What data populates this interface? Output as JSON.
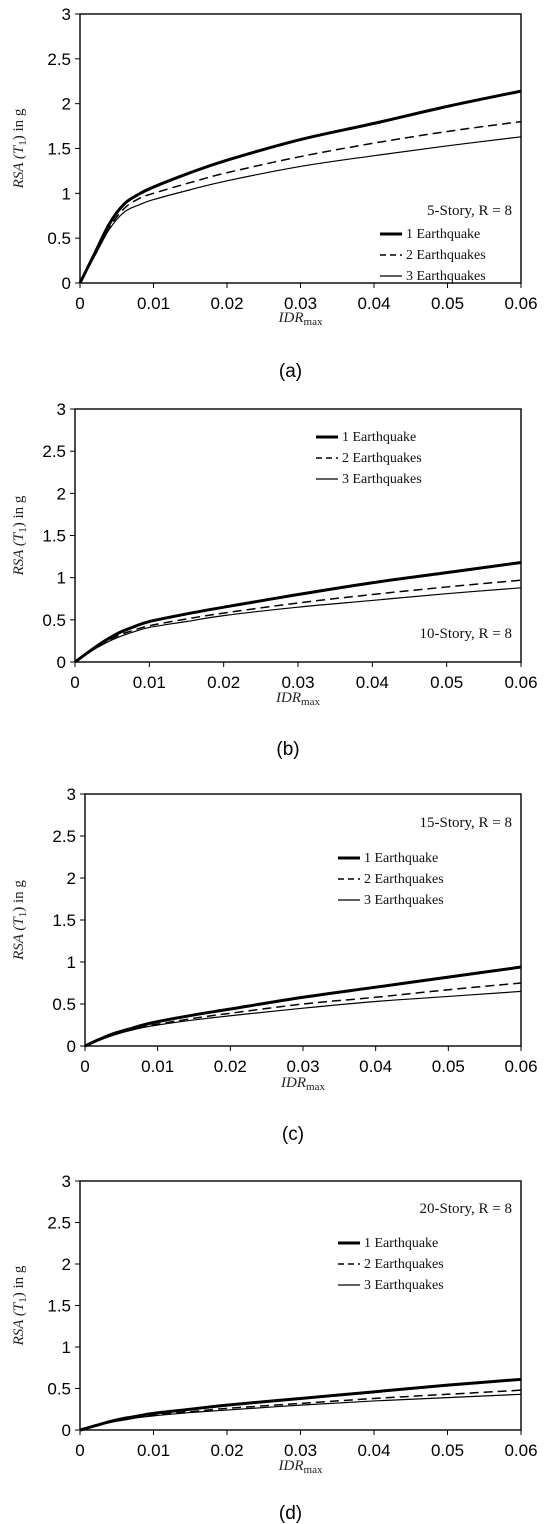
{
  "chart_data": [
    {
      "type": "line",
      "panel_label": "(a)",
      "title": "5-Story,  R = 8",
      "xlabel": "IDR",
      "xlabel_sub": "max",
      "ylabel": "RSA (T",
      "ylabel_sub": "1",
      "ylabel_tail": ") in g",
      "xlim": [
        0,
        0.06
      ],
      "ylim": [
        0,
        3
      ],
      "xticks": [
        "0",
        "0.01",
        "0.02",
        "0.03",
        "0.04",
        "0.05",
        "0.06"
      ],
      "yticks": [
        "0",
        "0.5",
        "1",
        "1.5",
        "2",
        "2.5",
        "3"
      ],
      "legend_position": "right",
      "series": [
        {
          "name": "1 Earthquake",
          "x": [
            0,
            0.002,
            0.004,
            0.006,
            0.008,
            0.01,
            0.015,
            0.02,
            0.03,
            0.04,
            0.05,
            0.06
          ],
          "y": [
            0,
            0.33,
            0.66,
            0.88,
            0.99,
            1.07,
            1.23,
            1.37,
            1.6,
            1.78,
            1.97,
            2.14
          ]
        },
        {
          "name": "2 Earthquakes",
          "x": [
            0,
            0.002,
            0.004,
            0.006,
            0.008,
            0.01,
            0.015,
            0.02,
            0.03,
            0.04,
            0.05,
            0.06
          ],
          "y": [
            0,
            0.31,
            0.62,
            0.83,
            0.94,
            1.0,
            1.12,
            1.23,
            1.41,
            1.56,
            1.69,
            1.8
          ]
        },
        {
          "name": "3 Earthquakes",
          "x": [
            0,
            0.002,
            0.004,
            0.006,
            0.008,
            0.01,
            0.015,
            0.02,
            0.03,
            0.04,
            0.05,
            0.06
          ],
          "y": [
            0,
            0.3,
            0.6,
            0.79,
            0.87,
            0.93,
            1.04,
            1.14,
            1.3,
            1.42,
            1.53,
            1.63
          ]
        }
      ]
    },
    {
      "type": "line",
      "panel_label": "(b)",
      "title": "10-Story,  R = 8",
      "xlabel": "IDR",
      "xlabel_sub": "max",
      "ylabel": "RSA (T",
      "ylabel_sub": "1",
      "ylabel_tail": ") in g",
      "xlim": [
        0,
        0.06
      ],
      "ylim": [
        0,
        3
      ],
      "xticks": [
        "0",
        "0.01",
        "0.02",
        "0.03",
        "0.04",
        "0.05",
        "0.06"
      ],
      "yticks": [
        "0",
        "0.5",
        "1",
        "1.5",
        "2",
        "2.5",
        "3"
      ],
      "legend_position": "top-right",
      "series": [
        {
          "name": "1 Earthquake",
          "x": [
            0,
            0.002,
            0.004,
            0.006,
            0.008,
            0.01,
            0.015,
            0.02,
            0.03,
            0.04,
            0.05,
            0.06
          ],
          "y": [
            0,
            0.13,
            0.25,
            0.35,
            0.42,
            0.48,
            0.57,
            0.65,
            0.8,
            0.94,
            1.06,
            1.18
          ]
        },
        {
          "name": "2 Earthquakes",
          "x": [
            0,
            0.002,
            0.004,
            0.006,
            0.008,
            0.01,
            0.015,
            0.02,
            0.03,
            0.04,
            0.05,
            0.06
          ],
          "y": [
            0,
            0.12,
            0.23,
            0.32,
            0.38,
            0.43,
            0.51,
            0.58,
            0.7,
            0.8,
            0.89,
            0.97
          ]
        },
        {
          "name": "3 Earthquakes",
          "x": [
            0,
            0.002,
            0.004,
            0.006,
            0.008,
            0.01,
            0.015,
            0.02,
            0.03,
            0.04,
            0.05,
            0.06
          ],
          "y": [
            0,
            0.12,
            0.22,
            0.3,
            0.36,
            0.41,
            0.48,
            0.55,
            0.65,
            0.73,
            0.81,
            0.88
          ]
        }
      ]
    },
    {
      "type": "line",
      "panel_label": "(c)",
      "title": "15-Story,  R = 8",
      "xlabel": "IDR",
      "xlabel_sub": "max",
      "ylabel": "RSA (T",
      "ylabel_sub": "1",
      "ylabel_tail": ") in g",
      "xlim": [
        0,
        0.06
      ],
      "ylim": [
        0,
        3
      ],
      "xticks": [
        "0",
        "0.01",
        "0.02",
        "0.03",
        "0.04",
        "0.05",
        "0.06"
      ],
      "yticks": [
        "0",
        "0.5",
        "1",
        "1.5",
        "2",
        "2.5",
        "3"
      ],
      "legend_position": "top-right",
      "series": [
        {
          "name": "1 Earthquake",
          "x": [
            0,
            0.002,
            0.004,
            0.006,
            0.008,
            0.01,
            0.015,
            0.02,
            0.03,
            0.04,
            0.05,
            0.06
          ],
          "y": [
            0,
            0.08,
            0.15,
            0.2,
            0.25,
            0.29,
            0.37,
            0.44,
            0.58,
            0.7,
            0.82,
            0.94
          ]
        },
        {
          "name": "2 Earthquakes",
          "x": [
            0,
            0.002,
            0.004,
            0.006,
            0.008,
            0.01,
            0.015,
            0.02,
            0.03,
            0.04,
            0.05,
            0.06
          ],
          "y": [
            0,
            0.07,
            0.14,
            0.19,
            0.23,
            0.26,
            0.33,
            0.39,
            0.5,
            0.58,
            0.67,
            0.75
          ]
        },
        {
          "name": "3 Earthquakes",
          "x": [
            0,
            0.002,
            0.004,
            0.006,
            0.008,
            0.01,
            0.015,
            0.02,
            0.03,
            0.04,
            0.05,
            0.06
          ],
          "y": [
            0,
            0.07,
            0.13,
            0.18,
            0.22,
            0.25,
            0.31,
            0.36,
            0.45,
            0.53,
            0.59,
            0.65
          ]
        }
      ]
    },
    {
      "type": "line",
      "panel_label": "(d)",
      "title": "20-Story,  R = 8",
      "xlabel": "IDR",
      "xlabel_sub": "max",
      "ylabel": "RSA (T",
      "ylabel_sub": "1",
      "ylabel_tail": ") in g",
      "xlim": [
        0,
        0.06
      ],
      "ylim": [
        0,
        3
      ],
      "xticks": [
        "0",
        "0.01",
        "0.02",
        "0.03",
        "0.04",
        "0.05",
        "0.06"
      ],
      "yticks": [
        "0",
        "0.5",
        "1",
        "1.5",
        "2",
        "2.5",
        "3"
      ],
      "legend_position": "top-right",
      "series": [
        {
          "name": "1 Earthquake",
          "x": [
            0,
            0.002,
            0.004,
            0.006,
            0.008,
            0.01,
            0.015,
            0.02,
            0.03,
            0.04,
            0.05,
            0.06
          ],
          "y": [
            0,
            0.05,
            0.1,
            0.14,
            0.17,
            0.2,
            0.25,
            0.3,
            0.38,
            0.46,
            0.54,
            0.61
          ]
        },
        {
          "name": "2 Earthquakes",
          "x": [
            0,
            0.002,
            0.004,
            0.006,
            0.008,
            0.01,
            0.015,
            0.02,
            0.03,
            0.04,
            0.05,
            0.06
          ],
          "y": [
            0,
            0.05,
            0.09,
            0.13,
            0.16,
            0.18,
            0.22,
            0.26,
            0.32,
            0.38,
            0.43,
            0.48
          ]
        },
        {
          "name": "3 Earthquakes",
          "x": [
            0,
            0.002,
            0.004,
            0.006,
            0.008,
            0.01,
            0.015,
            0.02,
            0.03,
            0.04,
            0.05,
            0.06
          ],
          "y": [
            0,
            0.05,
            0.09,
            0.12,
            0.15,
            0.17,
            0.21,
            0.24,
            0.3,
            0.35,
            0.39,
            0.43
          ]
        }
      ]
    }
  ]
}
